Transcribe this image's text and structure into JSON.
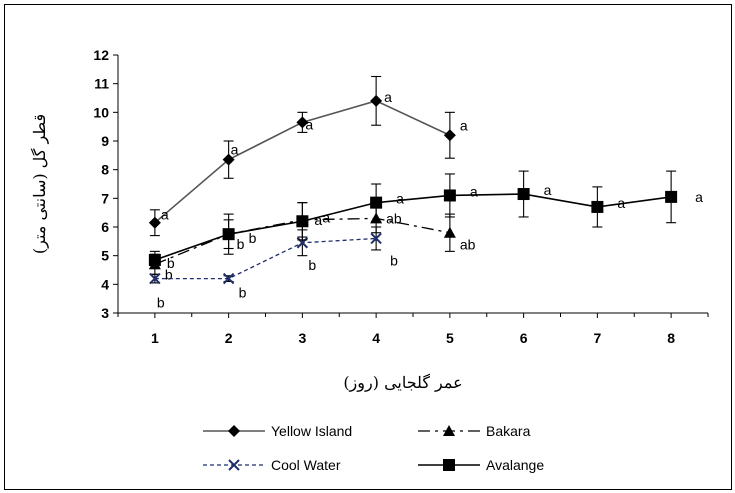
{
  "chart_data": {
    "type": "line",
    "title": "",
    "xlabel": "عمر گلجایی (روز)",
    "ylabel": "قطر گل (سانتی متر)",
    "x": [
      1,
      2,
      3,
      4,
      5,
      6,
      7,
      8
    ],
    "xlim": [
      0.5,
      8.5
    ],
    "ylim": [
      3,
      12
    ],
    "yticks": [
      3,
      4,
      5,
      6,
      7,
      8,
      9,
      10,
      11,
      12
    ],
    "grid": false,
    "legend_position": "bottom",
    "series": [
      {
        "name": "Yellow Island",
        "marker": "diamond",
        "line": "solid",
        "color": "#555555",
        "x": [
          1,
          2,
          3,
          4,
          5
        ],
        "values": [
          6.15,
          8.35,
          9.65,
          10.4,
          9.2
        ],
        "errors": [
          0.45,
          0.65,
          0.35,
          0.85,
          0.8
        ],
        "labels": [
          "a",
          "a",
          "a",
          "a",
          "a"
        ]
      },
      {
        "name": "Bakara",
        "marker": "triangle",
        "line": "dashdot",
        "color": "#000000",
        "x": [
          1,
          2,
          3,
          4,
          5
        ],
        "values": [
          4.7,
          5.75,
          6.25,
          6.3,
          5.8
        ],
        "errors": [
          0.35,
          0.5,
          0.6,
          0.5,
          0.65
        ],
        "labels": [
          "b",
          "b",
          "a",
          "ab",
          "ab"
        ]
      },
      {
        "name": "Cool Water",
        "marker": "x",
        "line": "dotted",
        "color": "#1f2f6b",
        "x": [
          1,
          2,
          3,
          4
        ],
        "values": [
          4.2,
          4.2,
          5.45,
          5.6
        ],
        "errors": [
          0.15,
          0.1,
          0.45,
          0.4
        ],
        "labels": [
          "b",
          "b",
          "b",
          "b"
        ]
      },
      {
        "name": "Avalange",
        "marker": "square",
        "line": "solid",
        "color": "#000000",
        "x": [
          1,
          2,
          3,
          4,
          5,
          6,
          7,
          8
        ],
        "values": [
          4.85,
          5.75,
          6.2,
          6.85,
          7.1,
          7.15,
          6.7,
          7.05
        ],
        "errors": [
          0.3,
          0.7,
          0.65,
          0.65,
          0.75,
          0.8,
          0.7,
          0.9
        ],
        "labels": [
          "b",
          "b",
          "a",
          "a",
          "a",
          "a",
          "a",
          "a"
        ]
      }
    ]
  }
}
